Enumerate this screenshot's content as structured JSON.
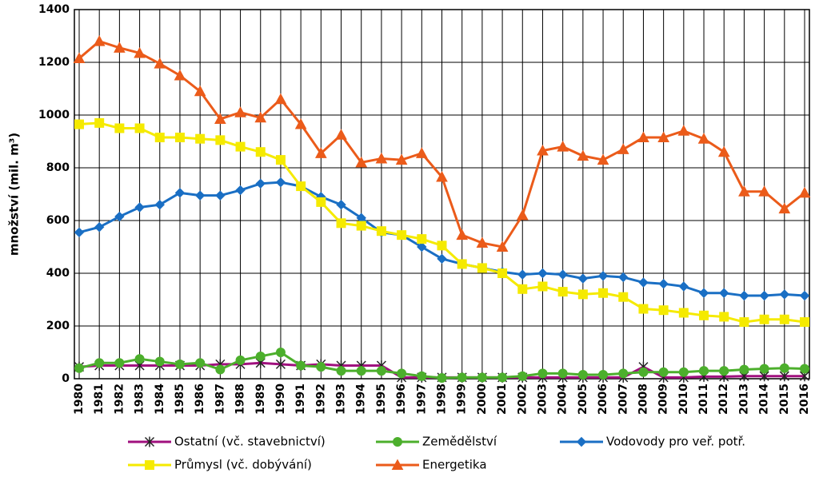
{
  "chart_data": {
    "type": "line",
    "y_label": "množství (mil. m³)",
    "categories": [
      "1980",
      "1981",
      "1982",
      "1983",
      "1984",
      "1985",
      "1986",
      "1987",
      "1988",
      "1989",
      "1990",
      "1991",
      "1992",
      "1993",
      "1994",
      "1995",
      "1996",
      "1997",
      "1998",
      "1999",
      "2000",
      "2001",
      "2002",
      "2003",
      "2004",
      "2005",
      "2006",
      "2007",
      "2008",
      "2009",
      "2010",
      "2011",
      "2012",
      "2013",
      "2014",
      "2015",
      "2016"
    ],
    "ylim": [
      0,
      1400
    ],
    "yticks": [
      0,
      200,
      400,
      600,
      800,
      1000,
      1200,
      1400
    ],
    "grid": true,
    "series": [
      {
        "name": "Ostatní (vč. stavebnictví)",
        "color": "#a0107e",
        "marker": "star",
        "values": [
          45,
          50,
          50,
          50,
          50,
          50,
          50,
          55,
          55,
          60,
          55,
          50,
          55,
          50,
          50,
          50,
          5,
          5,
          5,
          5,
          5,
          5,
          5,
          5,
          5,
          5,
          5,
          5,
          45,
          5,
          5,
          8,
          8,
          10,
          10,
          10,
          10
        ]
      },
      {
        "name": "Zemědělství",
        "color": "#4caf2c",
        "marker": "circle",
        "values": [
          40,
          60,
          60,
          75,
          65,
          55,
          60,
          35,
          70,
          85,
          100,
          50,
          45,
          30,
          30,
          30,
          20,
          10,
          3,
          5,
          5,
          5,
          10,
          20,
          20,
          15,
          15,
          20,
          25,
          25,
          25,
          30,
          30,
          35,
          38,
          40,
          38
        ]
      },
      {
        "name": "Vodovody pro veř. potř.",
        "color": "#1a6fc4",
        "marker": "diamond",
        "values": [
          555,
          575,
          615,
          650,
          660,
          705,
          695,
          695,
          715,
          740,
          745,
          730,
          690,
          660,
          610,
          555,
          545,
          500,
          455,
          435,
          420,
          405,
          395,
          400,
          395,
          380,
          390,
          385,
          365,
          360,
          350,
          325,
          325,
          315,
          315,
          320,
          315
        ]
      },
      {
        "name": "Průmysl (vč. dobývání)",
        "color": "#f5ea00",
        "marker": "square",
        "values": [
          965,
          970,
          950,
          950,
          915,
          915,
          910,
          905,
          880,
          860,
          830,
          730,
          670,
          590,
          580,
          560,
          545,
          530,
          505,
          435,
          420,
          400,
          340,
          350,
          330,
          320,
          325,
          310,
          265,
          260,
          250,
          240,
          235,
          215,
          225,
          225,
          215
        ]
      },
      {
        "name": "Energetika",
        "color": "#eb5b1a",
        "marker": "triangle",
        "values": [
          1215,
          1280,
          1255,
          1235,
          1195,
          1150,
          1090,
          985,
          1010,
          990,
          1060,
          965,
          855,
          925,
          820,
          835,
          830,
          855,
          765,
          545,
          515,
          500,
          620,
          865,
          880,
          845,
          830,
          870,
          915,
          915,
          940,
          910,
          860,
          710,
          710,
          645,
          705
        ]
      }
    ]
  }
}
